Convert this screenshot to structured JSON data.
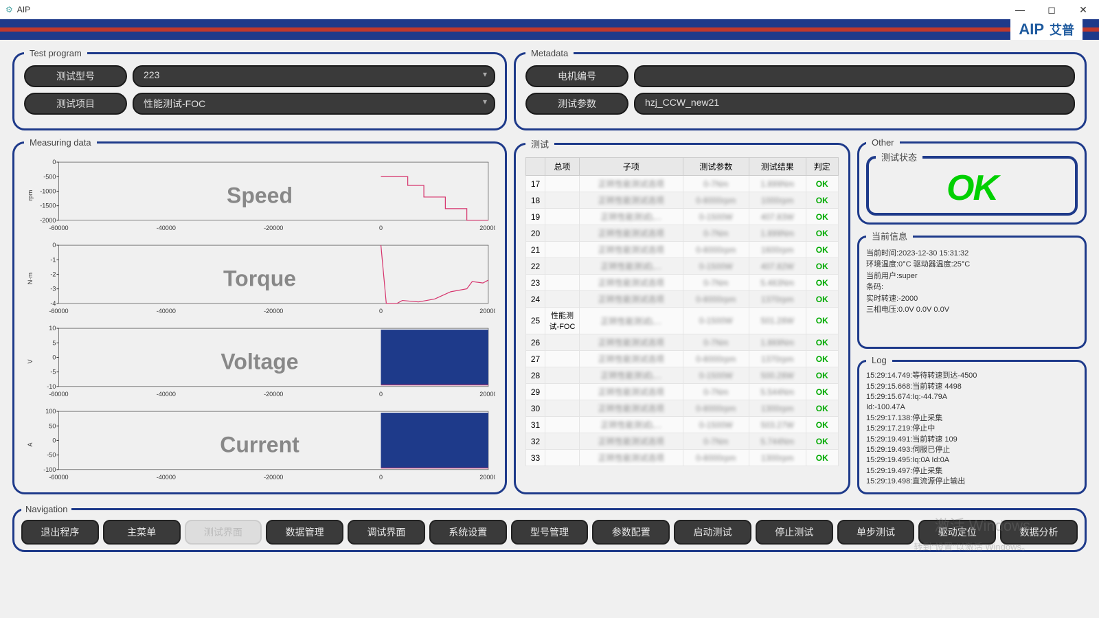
{
  "window": {
    "title": "AIP",
    "logo_main": "AIP",
    "logo_cn": "艾普"
  },
  "test_program": {
    "legend": "Test program",
    "model_label": "测试型号",
    "model_value": "223",
    "item_label": "测试项目",
    "item_value": "性能测试-FOC"
  },
  "metadata": {
    "legend": "Metadata",
    "motor_no_label": "电机编号",
    "motor_no_value": "",
    "param_label": "测试参数",
    "param_value": "hzj_CCW_new21"
  },
  "measuring": {
    "legend": "Measuring data",
    "x_axis": {
      "min": -60000,
      "max": 20000,
      "ticks": [
        -60000,
        -40000,
        -20000,
        0,
        20000
      ]
    },
    "charts": [
      {
        "title": "Speed",
        "unit": "rpm",
        "ymin": -2000,
        "ymax": 0,
        "yticks": [
          -2000,
          -1500,
          -1000,
          -500,
          0
        ],
        "line_color": "#d6336c",
        "points": [
          [
            0,
            -500
          ],
          [
            5000,
            -500
          ],
          [
            5000,
            -800
          ],
          [
            8000,
            -800
          ],
          [
            8000,
            -1200
          ],
          [
            12000,
            -1200
          ],
          [
            12000,
            -1600
          ],
          [
            16000,
            -1600
          ],
          [
            16000,
            -2000
          ],
          [
            20000,
            -2000
          ]
        ]
      },
      {
        "title": "Torque",
        "unit": "N·m",
        "ymin": -4,
        "ymax": 0,
        "yticks": [
          -4,
          -3,
          -2,
          -1,
          0
        ],
        "line_color": "#d6336c",
        "points": [
          [
            0,
            0
          ],
          [
            1000,
            -4
          ],
          [
            3000,
            -4
          ],
          [
            4000,
            -3.8
          ],
          [
            7000,
            -3.9
          ],
          [
            10000,
            -3.7
          ],
          [
            13000,
            -3.2
          ],
          [
            16000,
            -3
          ],
          [
            17000,
            -2.5
          ],
          [
            19000,
            -2.6
          ],
          [
            20000,
            -2.4
          ]
        ]
      },
      {
        "title": "Voltage",
        "unit": "V",
        "ymin": -10,
        "ymax": 10,
        "yticks": [
          -10,
          -5,
          0,
          5,
          10
        ],
        "fill_color": "#1e3a8a",
        "dense_start": 0
      },
      {
        "title": "Current",
        "unit": "A",
        "ymin": -100,
        "ymax": 100,
        "yticks": [
          -100,
          -50,
          0,
          50,
          100
        ],
        "fill_color": "#1e3a8a",
        "dense_start": 0
      }
    ]
  },
  "test_table": {
    "legend": "测试",
    "columns": [
      "",
      "总项",
      "子项",
      "测试参数",
      "测试结果",
      "判定"
    ],
    "group_label": "性能测试-FOC",
    "rows": [
      {
        "no": 17,
        "sub": "正转性能测试选项",
        "param": "0-7Nm",
        "result": "1.899Nm",
        "verdict": "OK"
      },
      {
        "no": 18,
        "sub": "正转性能测试选项",
        "param": "0-8000rpm",
        "result": "1000rpm",
        "verdict": "OK"
      },
      {
        "no": 19,
        "sub": "正转性能测试L...",
        "param": "0-1500W",
        "result": "407.83W",
        "verdict": "OK"
      },
      {
        "no": 20,
        "sub": "正转性能测试选项",
        "param": "0-7Nm",
        "result": "1.899Nm",
        "verdict": "OK"
      },
      {
        "no": 21,
        "sub": "正转性能测试选项",
        "param": "0-8000rpm",
        "result": "1600rpm",
        "verdict": "OK"
      },
      {
        "no": 22,
        "sub": "正转性能测试L...",
        "param": "0-1500W",
        "result": "407.82W",
        "verdict": "OK"
      },
      {
        "no": 23,
        "sub": "正转性能测试选项",
        "param": "0-7Nm",
        "result": "5.463Nm",
        "verdict": "OK"
      },
      {
        "no": 24,
        "sub": "正转性能测试选项",
        "param": "0-8000rpm",
        "result": "1370rpm",
        "verdict": "OK"
      },
      {
        "no": 25,
        "sub": "正转性能测试L...",
        "param": "0-1500W",
        "result": "501.28W",
        "verdict": "OK"
      },
      {
        "no": 26,
        "sub": "正转性能测试选项",
        "param": "0-7Nm",
        "result": "1.869Nm",
        "verdict": "OK"
      },
      {
        "no": 27,
        "sub": "正转性能测试选项",
        "param": "0-8000rpm",
        "result": "1370rpm",
        "verdict": "OK"
      },
      {
        "no": 28,
        "sub": "正转性能测试L...",
        "param": "0-1500W",
        "result": "500.28W",
        "verdict": "OK"
      },
      {
        "no": 29,
        "sub": "正转性能测试选项",
        "param": "0-7Nm",
        "result": "5.544Nm",
        "verdict": "OK"
      },
      {
        "no": 30,
        "sub": "正转性能测试选项",
        "param": "0-8000rpm",
        "result": "1300rpm",
        "verdict": "OK"
      },
      {
        "no": 31,
        "sub": "正转性能测试L...",
        "param": "0-1500W",
        "result": "503.27W",
        "verdict": "OK"
      },
      {
        "no": 32,
        "sub": "正转性能测试选项",
        "param": "0-7Nm",
        "result": "5.744Nm",
        "verdict": "OK"
      },
      {
        "no": 33,
        "sub": "正转性能测试选项",
        "param": "0-8000rpm",
        "result": "1300rpm",
        "verdict": "OK"
      }
    ]
  },
  "other": {
    "legend": "Other",
    "status": {
      "legend": "测试状态",
      "value": "OK",
      "color": "#00d000"
    },
    "info": {
      "legend": "当前信息",
      "lines": [
        "当前时间:2023-12-30 15:31:32",
        "环境温度:0°C 驱动器温度:25°C",
        "当前用户:super",
        "条码:",
        "实时转速:-2000",
        "三相电压:0.0V 0.0V 0.0V"
      ]
    },
    "log": {
      "legend": "Log",
      "lines": [
        "15:29:14.749:等待转速到达-4500",
        "15:29:15.668:当前转速 4498",
        "15:29:15.674:Iq:-44.79A",
        "Id:-100.47A",
        "15:29:17.138:停止采集",
        "15:29:17.219:停止中",
        "15:29:19.491:当前转速 109",
        "15:29:19.493:伺服已停止",
        "15:29:19.495:Iq:0A Id:0A",
        "15:29:19.497:停止采集",
        "15:29:19.498:直流源停止输出"
      ]
    }
  },
  "nav": {
    "legend": "Navigation",
    "buttons": [
      {
        "label": "退出程序",
        "enabled": true
      },
      {
        "label": "主菜单",
        "enabled": true
      },
      {
        "label": "测试界面",
        "enabled": false
      },
      {
        "label": "数据管理",
        "enabled": true
      },
      {
        "label": "调试界面",
        "enabled": true
      },
      {
        "label": "系统设置",
        "enabled": true
      },
      {
        "label": "型号管理",
        "enabled": true
      },
      {
        "label": "参数配置",
        "enabled": true
      },
      {
        "label": "启动测试",
        "enabled": true
      },
      {
        "label": "停止测试",
        "enabled": true
      },
      {
        "label": "单步测试",
        "enabled": true
      },
      {
        "label": "驱动定位",
        "enabled": true
      },
      {
        "label": "数据分析",
        "enabled": true
      }
    ]
  },
  "watermark": {
    "l1": "激活 Windows",
    "l2": "转到\"设置\"以激活 Windows。"
  }
}
